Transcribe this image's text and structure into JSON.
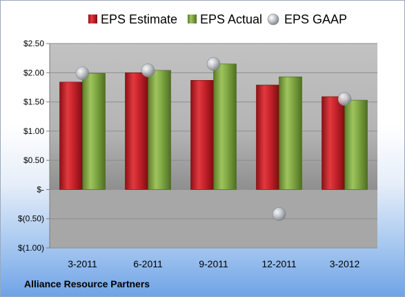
{
  "colors": {
    "estimate": "#c8232b",
    "actual": "#80a844",
    "gaap": "#b9bcc2"
  },
  "footer": {
    "company": "Alliance Resource Partners"
  },
  "chart_data": {
    "type": "bar",
    "title": "",
    "xlabel": "",
    "ylabel": "",
    "categories": [
      "3-2011",
      "6-2011",
      "9-2011",
      "12-2011",
      "3-2012"
    ],
    "series": [
      {
        "name": "EPS Estimate",
        "type": "bar",
        "values": [
          1.84,
          2.0,
          1.87,
          1.79,
          1.59
        ]
      },
      {
        "name": "EPS Actual",
        "type": "bar",
        "values": [
          1.99,
          2.04,
          2.15,
          1.93,
          1.53
        ]
      },
      {
        "name": "EPS GAAP",
        "type": "scatter",
        "values": [
          1.99,
          2.04,
          2.15,
          -0.42,
          1.55
        ]
      }
    ],
    "ylim": [
      -1.0,
      2.5
    ],
    "yticks": [
      2.5,
      2.0,
      1.5,
      1.0,
      0.5,
      0,
      -0.5,
      -1.0
    ],
    "ytick_labels": [
      "$2.50",
      "$2.00",
      "$1.50",
      "$1.00",
      "$0.50",
      "$-",
      "$(0.50)",
      "$(1.00)"
    ],
    "grid": true,
    "legend_position": "top"
  }
}
